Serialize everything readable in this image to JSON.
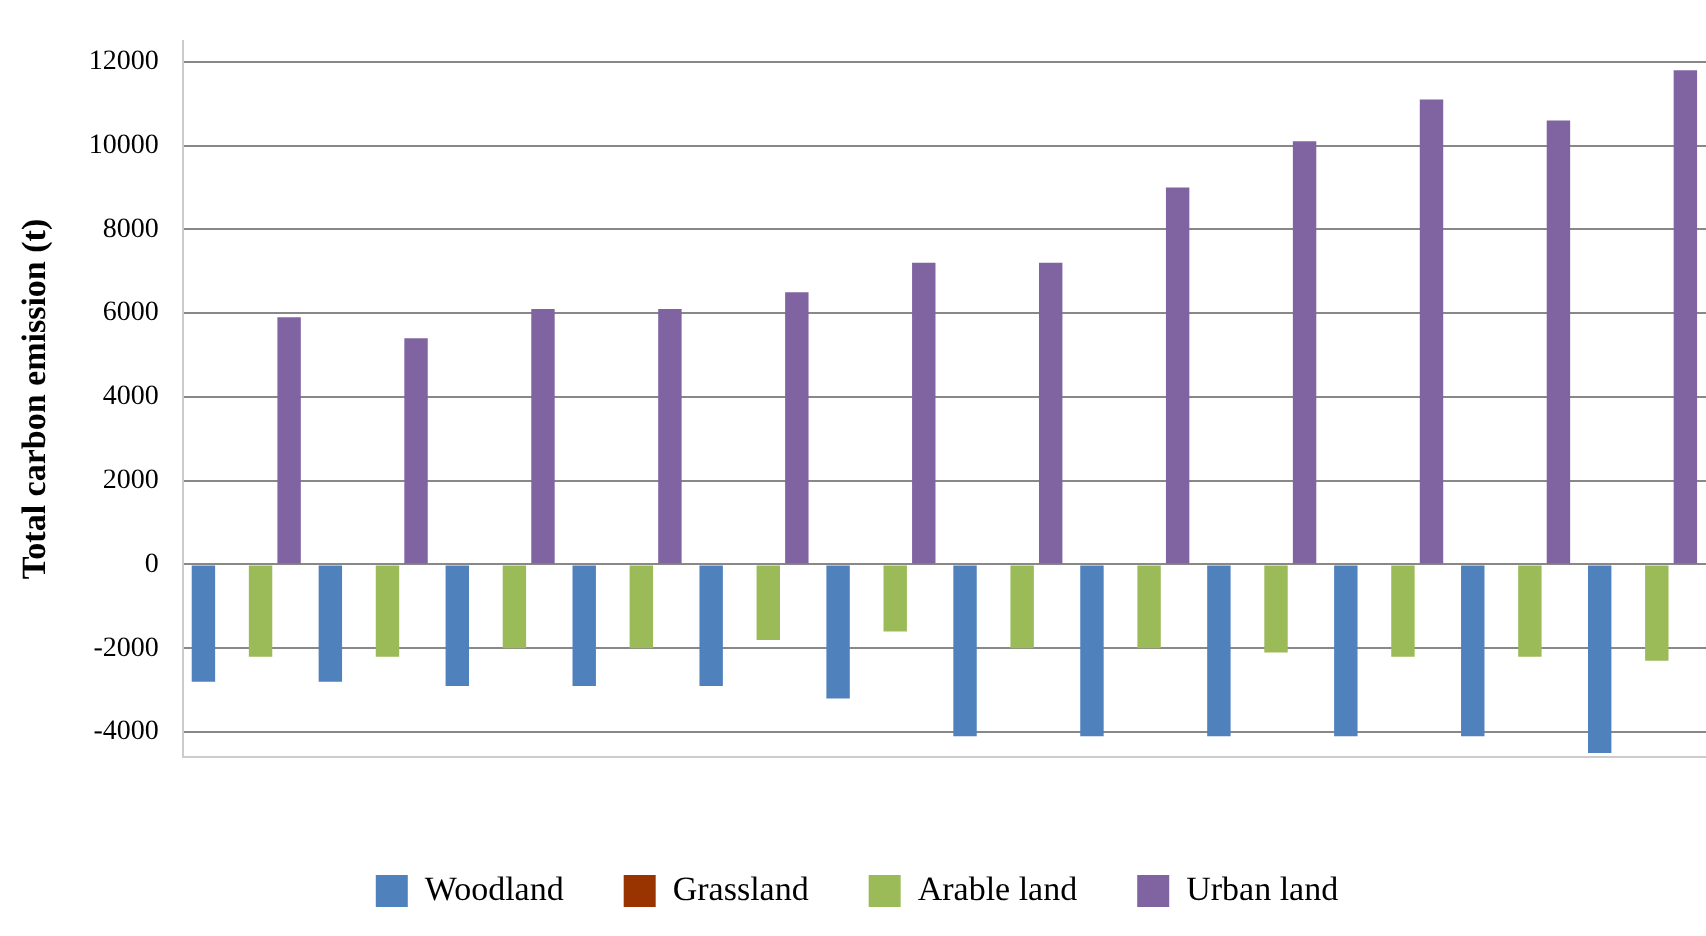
{
  "chart_data": {
    "type": "bar",
    "ylabel": "Total carbon emission (t)",
    "categories": [
      null,
      null,
      null,
      null,
      null,
      null,
      null,
      null,
      null,
      null,
      null,
      null
    ],
    "series": [
      {
        "name": "Woodland",
        "color": "#4f81bd",
        "values": [
          -2800,
          -2800,
          -2900,
          -2900,
          -2900,
          -3200,
          -4100,
          -4100,
          -4100,
          -4100,
          -4100,
          -4500
        ]
      },
      {
        "name": "Grassland",
        "color": "#993300",
        "values": [
          0,
          0,
          0,
          0,
          0,
          0,
          0,
          0,
          0,
          0,
          0,
          0
        ]
      },
      {
        "name": "Arable land",
        "color": "#9bbb59",
        "values": [
          -2200,
          -2200,
          -2000,
          -2000,
          -1800,
          -1600,
          -2000,
          -2000,
          -2100,
          -2200,
          -2200,
          -2300
        ]
      },
      {
        "name": "Urban land",
        "color": "#8064a2",
        "values": [
          5900,
          5400,
          6100,
          6100,
          6500,
          7200,
          7200,
          9000,
          10100,
          11100,
          10600,
          11800
        ]
      }
    ],
    "ylim": [
      -4600,
      12500
    ],
    "yticks": [
      -4000,
      -2000,
      0,
      2000,
      4000,
      6000,
      8000,
      10000,
      12000
    ],
    "grid": "y",
    "legend": "bottom"
  }
}
